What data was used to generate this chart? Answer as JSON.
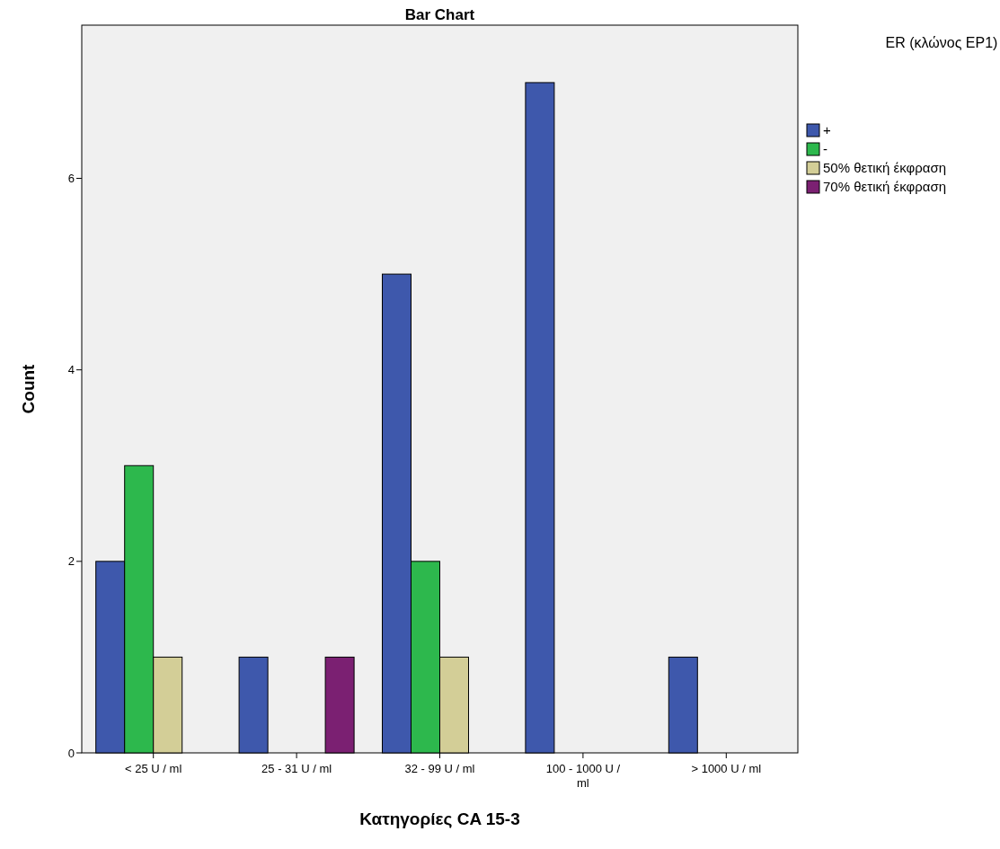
{
  "chart_data": {
    "type": "bar",
    "title": "Bar Chart",
    "xlabel": "Κατηγορίες CA 15-3",
    "ylabel": "Count",
    "legend_title": "ER (κλώνος EP1)",
    "categories": [
      "< 25 U / ml",
      "25 - 31 U / ml",
      "32 - 99 U / ml",
      "100 - 1000 U / ml",
      "> 1000 U / ml"
    ],
    "series": [
      {
        "name": "+",
        "color": "#3e58ac",
        "values": [
          2,
          1,
          5,
          7,
          1
        ]
      },
      {
        "name": "-",
        "color": "#2db84d",
        "values": [
          3,
          null,
          2,
          null,
          null
        ]
      },
      {
        "name": "50% θετική έκφραση",
        "color": "#d3ce97",
        "values": [
          1,
          null,
          1,
          null,
          null
        ]
      },
      {
        "name": "70% θετική έκφραση",
        "color": "#7b2072",
        "values": [
          null,
          1,
          null,
          null,
          null
        ]
      }
    ],
    "ylim": [
      0,
      7.6
    ],
    "yticks": [
      0,
      2,
      4,
      6
    ],
    "grid": false,
    "legend": "top right"
  }
}
